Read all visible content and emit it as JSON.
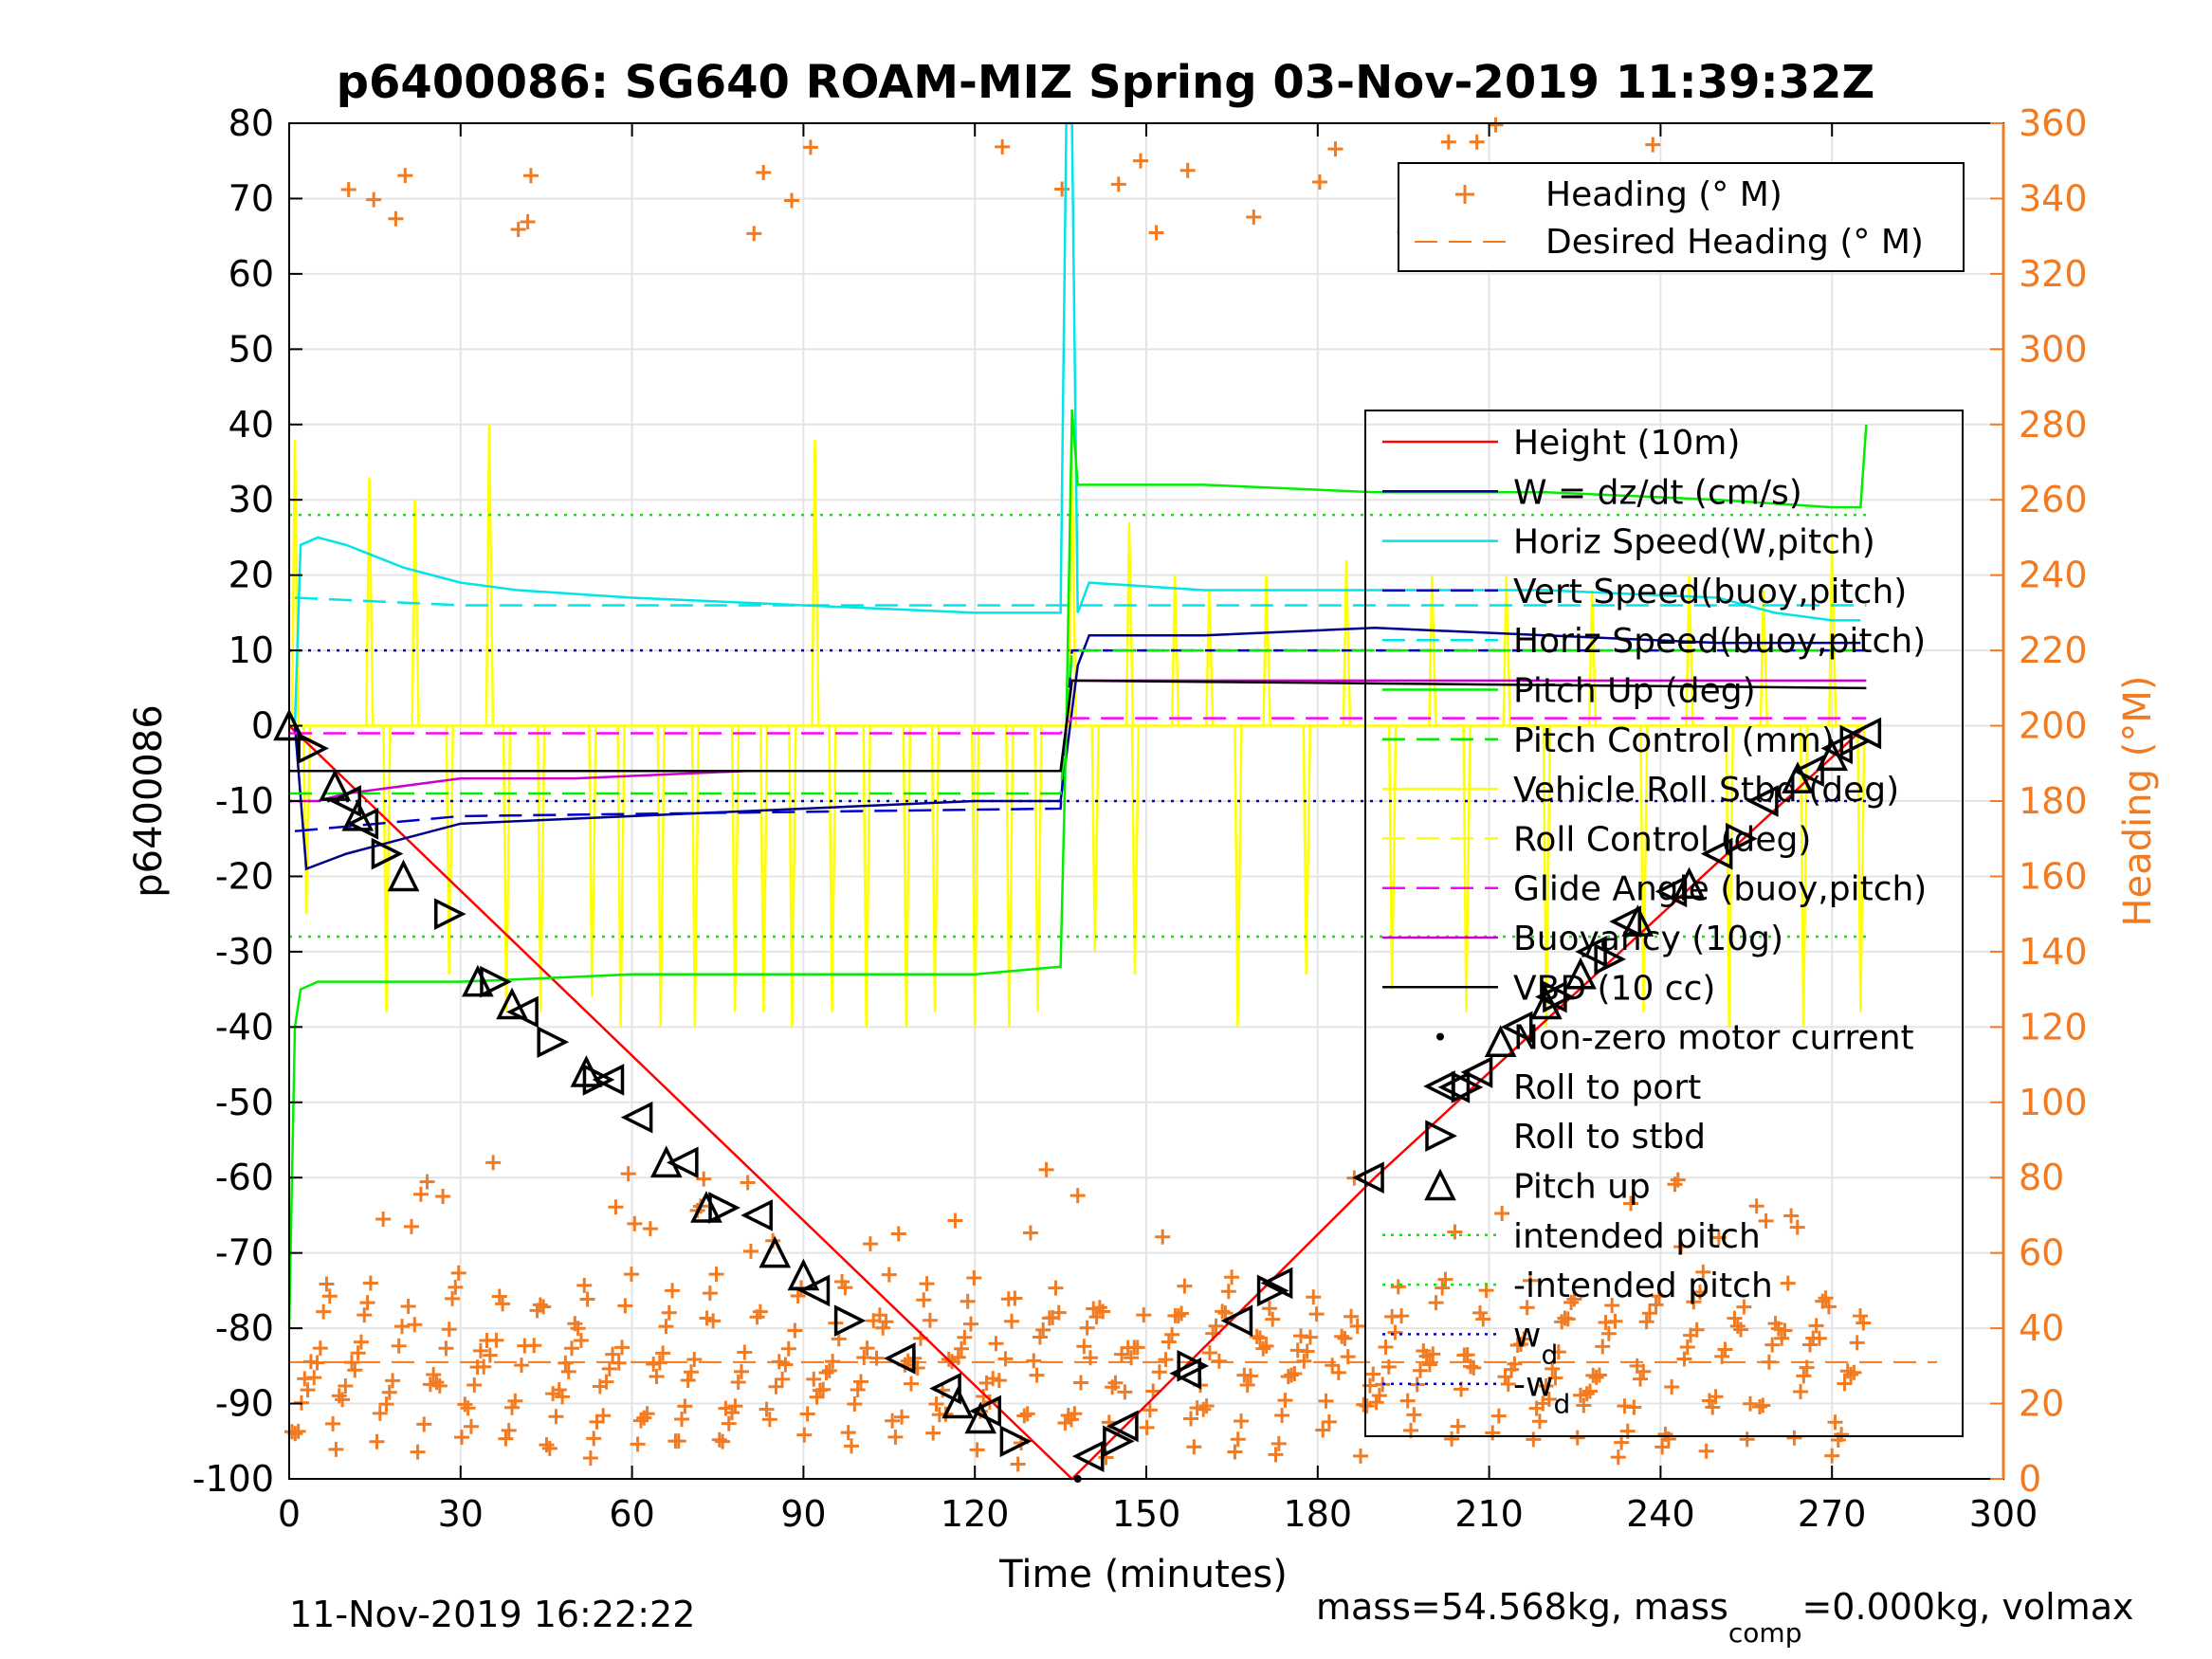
{
  "chart_data": {
    "type": "line",
    "title": "p6400086: SG640 ROAM-MIZ Spring 03-Nov-2019 11:39:32Z",
    "xlabel": "Time (minutes)",
    "ylabel": "p6400086",
    "ylabel_right": "Heading (°M)",
    "xlim": [
      0,
      300
    ],
    "ylim": [
      -100,
      80
    ],
    "ylim_right": [
      0,
      360
    ],
    "xticks": [
      0,
      30,
      60,
      90,
      120,
      150,
      180,
      210,
      240,
      270,
      300
    ],
    "yticks": [
      -100,
      -90,
      -80,
      -70,
      -60,
      -50,
      -40,
      -30,
      -20,
      -10,
      0,
      10,
      20,
      30,
      40,
      50,
      60,
      70,
      80
    ],
    "yticks_right": [
      0,
      20,
      40,
      60,
      80,
      100,
      120,
      140,
      160,
      180,
      200,
      220,
      240,
      260,
      280,
      300,
      320,
      340,
      360
    ],
    "grid": true,
    "footer_left": "11-Nov-2019 16:22:22",
    "footer_right": {
      "a": "mass=54.568kg, mass",
      "sub": "comp",
      "b": "=0.000kg, volmax"
    },
    "legend_top": [
      {
        "label": "Heading (° M)",
        "color": "#f27b21",
        "style": "plus"
      },
      {
        "label": "Desired Heading (° M)",
        "color": "#f27b21",
        "style": "dashed"
      }
    ],
    "legend_main": [
      {
        "label": "Height (10m)",
        "color": "#ff0000",
        "style": "solid"
      },
      {
        "label": "W = dz/dt (cm/s)",
        "color": "#00008b",
        "style": "solid"
      },
      {
        "label": "Horiz Speed(W,pitch)",
        "color": "#00e5e5",
        "style": "solid"
      },
      {
        "label": "Vert Speed(buoy,pitch)",
        "color": "#0000cd",
        "style": "dashed"
      },
      {
        "label": "Horiz Speed(buoy,pitch)",
        "color": "#00e5e5",
        "style": "dashed"
      },
      {
        "label": "Pitch Up (deg)",
        "color": "#00ee00",
        "style": "solid"
      },
      {
        "label": "Pitch Control (mm)",
        "color": "#00ee00",
        "style": "dashed"
      },
      {
        "label": "Vehicle Roll Stbd (deg)",
        "color": "#ffff00",
        "style": "solid"
      },
      {
        "label": "Roll Control (deg)",
        "color": "#ffff00",
        "style": "dashed"
      },
      {
        "label": "Glide Angle (buoy,pitch)",
        "color": "#ff00ff",
        "style": "dashed"
      },
      {
        "label": "Buoyancy (10g)",
        "color": "#cc00cc",
        "style": "solid"
      },
      {
        "label": "VBD (10 cc)",
        "color": "#000000",
        "style": "solid"
      },
      {
        "label": "Non-zero motor current",
        "color": "#000000",
        "style": "dot"
      },
      {
        "label": "Roll to port",
        "color": "#000000",
        "style": "tri-left"
      },
      {
        "label": "Roll to stbd",
        "color": "#000000",
        "style": "tri-right"
      },
      {
        "label": "Pitch up",
        "color": "#000000",
        "style": "tri-up"
      },
      {
        "label": "intended pitch",
        "color": "#00ee00",
        "style": "dotted"
      },
      {
        "label": "-intended pitch",
        "color": "#00ee00",
        "style": "dotted"
      },
      {
        "label": "w",
        "sub": "d",
        "color": "#0000cd",
        "style": "dotted"
      },
      {
        "label": "-w",
        "sub": "d",
        "color": "#0000cd",
        "style": "dotted"
      }
    ],
    "series": [
      {
        "name": "Height (10m)",
        "color": "#ff0000",
        "x": [
          0,
          137,
          190,
          276
        ],
        "y": [
          0,
          -100,
          -60,
          0
        ]
      },
      {
        "name": "W = dz/dt (cm/s)",
        "color": "#00008b",
        "x": [
          1,
          3,
          10,
          20,
          30,
          60,
          90,
          120,
          135,
          138,
          140,
          160,
          190,
          220,
          250,
          275
        ],
        "y": [
          0,
          -19,
          -17,
          -15,
          -13,
          -12,
          -11,
          -10,
          -10,
          8,
          12,
          12,
          13,
          12,
          11,
          11
        ]
      },
      {
        "name": "Horiz Speed(W,pitch)",
        "color": "#00e5e5",
        "x": [
          1,
          2,
          5,
          10,
          20,
          30,
          40,
          60,
          90,
          120,
          135,
          136,
          137,
          138,
          140,
          160,
          190,
          220,
          250,
          260,
          270,
          275
        ],
        "y": [
          0,
          24,
          25,
          24,
          21,
          19,
          18,
          17,
          16,
          15,
          15,
          80,
          80,
          15,
          19,
          18,
          18,
          18,
          17,
          15,
          14,
          14
        ]
      },
      {
        "name": "Vert Speed(buoy,pitch)",
        "color": "#0000cd",
        "x": [
          1,
          30,
          135,
          137,
          276
        ],
        "y": [
          -14,
          -12,
          -11,
          10,
          10
        ]
      },
      {
        "name": "Horiz Speed(buoy,pitch)",
        "color": "#00e5e5",
        "x": [
          1,
          30,
          135,
          137,
          276
        ],
        "y": [
          17,
          16,
          16,
          16,
          16
        ]
      },
      {
        "name": "Pitch Up (deg)",
        "color": "#00ee00",
        "x": [
          0,
          1,
          2,
          5,
          30,
          60,
          90,
          120,
          135,
          136,
          137,
          138,
          140,
          160,
          190,
          220,
          250,
          270,
          275,
          276
        ],
        "y": [
          -80,
          -40,
          -35,
          -34,
          -34,
          -33,
          -33,
          -33,
          -32,
          0,
          42,
          32,
          32,
          32,
          31,
          31,
          30,
          29,
          29,
          40
        ]
      },
      {
        "name": "Pitch Control (mm)",
        "color": "#00ee00",
        "x": [
          0,
          135,
          137,
          276
        ],
        "y": [
          -9,
          -9,
          10,
          10
        ]
      },
      {
        "name": "Glide Angle (buoy,pitch)",
        "color": "#ff00ff",
        "x": [
          0,
          135,
          137,
          276
        ],
        "y": [
          -1,
          -1,
          1,
          1
        ]
      },
      {
        "name": "Buoyancy (10g)",
        "color": "#cc00cc",
        "x": [
          0,
          5,
          10,
          20,
          30,
          50,
          80,
          135,
          137,
          140,
          200,
          276
        ],
        "y": [
          -10,
          -10,
          -9,
          -8,
          -7,
          -7,
          -6,
          -6,
          6,
          6,
          6,
          6
        ]
      },
      {
        "name": "VBD (10 cc)",
        "color": "#000000",
        "x": [
          0,
          2,
          135,
          137,
          276
        ],
        "y": [
          -6,
          -6,
          -6,
          6,
          5
        ]
      }
    ],
    "constant_lines": [
      {
        "label": "intended pitch",
        "color": "#00ee00",
        "y": 28
      },
      {
        "label": "-intended pitch",
        "color": "#00ee00",
        "y": -28
      },
      {
        "label": "w_d",
        "color": "#0000cd",
        "y": 10
      },
      {
        "label": "-w_d",
        "color": "#0000cd",
        "y": -10
      }
    ],
    "desired_heading_deg": 31,
    "roll_port_markers": [
      [
        10,
        -10
      ],
      [
        13,
        -13
      ],
      [
        41,
        -38
      ],
      [
        56,
        -47
      ],
      [
        61,
        -52
      ],
      [
        69,
        -58
      ],
      [
        82,
        -65
      ],
      [
        92,
        -75
      ],
      [
        107,
        -84
      ],
      [
        115,
        -88
      ],
      [
        122,
        -91
      ],
      [
        140,
        -97
      ],
      [
        146,
        -93
      ],
      [
        157,
        -86
      ],
      [
        166,
        -79
      ],
      [
        173,
        -74
      ],
      [
        189,
        -60
      ],
      [
        204,
        -48
      ],
      [
        208,
        -46
      ],
      [
        215,
        -40
      ],
      [
        221,
        -36
      ],
      [
        228,
        -30
      ],
      [
        234,
        -26
      ],
      [
        242,
        -22
      ],
      [
        250,
        -17
      ],
      [
        258,
        -10
      ],
      [
        266,
        -6
      ],
      [
        271,
        -3
      ],
      [
        276,
        -1
      ]
    ],
    "roll_stbd_markers": [
      [
        4,
        -3
      ],
      [
        17,
        -17
      ],
      [
        28,
        -25
      ],
      [
        36,
        -34
      ],
      [
        46,
        -42
      ],
      [
        54,
        -47
      ],
      [
        76,
        -64
      ],
      [
        98,
        -79
      ],
      [
        127,
        -95
      ],
      [
        145,
        -95
      ],
      [
        158,
        -85
      ],
      [
        172,
        -75
      ],
      [
        206,
        -48
      ],
      [
        222,
        -36
      ],
      [
        231,
        -31
      ],
      [
        254,
        -15
      ],
      [
        274,
        -2
      ]
    ],
    "pitch_up_markers": [
      [
        0,
        0
      ],
      [
        8,
        -8
      ],
      [
        12,
        -12
      ],
      [
        20,
        -20
      ],
      [
        33,
        -34
      ],
      [
        39,
        -37
      ],
      [
        52,
        -46
      ],
      [
        66,
        -58
      ],
      [
        73,
        -64
      ],
      [
        85,
        -70
      ],
      [
        90,
        -73
      ],
      [
        117,
        -90
      ],
      [
        121,
        -92
      ],
      [
        212,
        -42
      ],
      [
        220,
        -37
      ],
      [
        226,
        -33
      ],
      [
        236,
        -26
      ],
      [
        245,
        -21
      ],
      [
        264,
        -7
      ],
      [
        270,
        -4
      ]
    ],
    "motor_current_dots": [
      [
        138,
        -100
      ]
    ],
    "roll_spikes": [
      {
        "x": 1,
        "y": 38
      },
      {
        "x": 3,
        "y": -25
      },
      {
        "x": 14,
        "y": 33
      },
      {
        "x": 17,
        "y": -38
      },
      {
        "x": 22,
        "y": 30
      },
      {
        "x": 28,
        "y": -33
      },
      {
        "x": 35,
        "y": 40
      },
      {
        "x": 38,
        "y": -38
      },
      {
        "x": 44,
        "y": -38
      },
      {
        "x": 53,
        "y": -36
      },
      {
        "x": 58,
        "y": -40
      },
      {
        "x": 65,
        "y": -40
      },
      {
        "x": 71,
        "y": -40
      },
      {
        "x": 78,
        "y": -38
      },
      {
        "x": 83,
        "y": -38
      },
      {
        "x": 88,
        "y": -40
      },
      {
        "x": 92,
        "y": 38
      },
      {
        "x": 95,
        "y": -38
      },
      {
        "x": 101,
        "y": -40
      },
      {
        "x": 108,
        "y": -40
      },
      {
        "x": 113,
        "y": -38
      },
      {
        "x": 120,
        "y": -40
      },
      {
        "x": 126,
        "y": -40
      },
      {
        "x": 131,
        "y": -38
      },
      {
        "x": 137,
        "y": 36
      },
      {
        "x": 141,
        "y": -30
      },
      {
        "x": 147,
        "y": 27
      },
      {
        "x": 148,
        "y": -33
      },
      {
        "x": 155,
        "y": 20
      },
      {
        "x": 161,
        "y": 18
      },
      {
        "x": 166,
        "y": -40
      },
      {
        "x": 171,
        "y": 20
      },
      {
        "x": 178,
        "y": -33
      },
      {
        "x": 185,
        "y": 22
      },
      {
        "x": 193,
        "y": -35
      },
      {
        "x": 200,
        "y": 20
      },
      {
        "x": 206,
        "y": -38
      },
      {
        "x": 213,
        "y": 20
      },
      {
        "x": 220,
        "y": -40
      },
      {
        "x": 228,
        "y": 18
      },
      {
        "x": 237,
        "y": -38
      },
      {
        "x": 245,
        "y": 20
      },
      {
        "x": 252,
        "y": -40
      },
      {
        "x": 258,
        "y": 18
      },
      {
        "x": 265,
        "y": -40
      },
      {
        "x": 270,
        "y": 25
      },
      {
        "x": 275,
        "y": -38
      }
    ]
  }
}
